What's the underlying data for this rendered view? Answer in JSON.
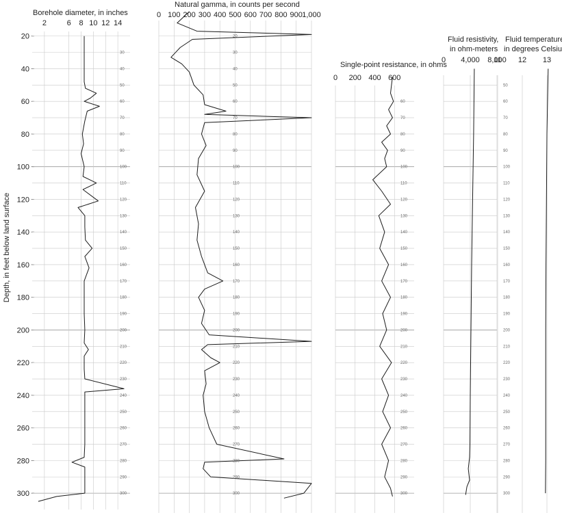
{
  "chart_data": {
    "type": "line",
    "orientation": "depth-vertical",
    "ylabel": "Depth, in feet below land surface",
    "ylim": [
      0,
      310
    ],
    "yticks": [
      20,
      40,
      60,
      80,
      100,
      120,
      140,
      160,
      180,
      200,
      220,
      240,
      260,
      280,
      300
    ],
    "tracks": [
      {
        "title": "Borehole diameter, in inches",
        "xlim": [
          0,
          16
        ],
        "xticks": [
          2,
          6,
          8,
          10,
          12,
          14
        ],
        "points": [
          [
            8.5,
            20
          ],
          [
            8.5,
            30
          ],
          [
            8.5,
            40
          ],
          [
            8.5,
            48
          ],
          [
            8.7,
            52
          ],
          [
            10.5,
            55
          ],
          [
            9.5,
            58
          ],
          [
            8.5,
            60
          ],
          [
            11,
            63
          ],
          [
            9,
            66
          ],
          [
            8.6,
            72
          ],
          [
            8.2,
            80
          ],
          [
            8.4,
            86
          ],
          [
            8,
            92
          ],
          [
            8.5,
            100
          ],
          [
            8.3,
            106
          ],
          [
            10.5,
            110
          ],
          [
            8.3,
            114
          ],
          [
            10.8,
            121
          ],
          [
            7.5,
            125
          ],
          [
            8.6,
            130
          ],
          [
            8.6,
            137
          ],
          [
            8.7,
            145
          ],
          [
            9.8,
            150
          ],
          [
            8.6,
            155
          ],
          [
            9.3,
            162
          ],
          [
            8.5,
            170
          ],
          [
            8.5,
            180
          ],
          [
            8.5,
            190
          ],
          [
            8.6,
            200
          ],
          [
            8.5,
            208
          ],
          [
            9.2,
            212
          ],
          [
            8.5,
            216
          ],
          [
            8.5,
            224
          ],
          [
            8.6,
            230
          ],
          [
            15,
            236
          ],
          [
            8.6,
            238
          ],
          [
            8.6,
            250
          ],
          [
            8.6,
            260
          ],
          [
            8.6,
            270
          ],
          [
            8.5,
            278
          ],
          [
            6.5,
            281
          ],
          [
            8.6,
            284
          ],
          [
            8.6,
            292
          ],
          [
            8.6,
            300
          ],
          [
            4,
            302
          ],
          [
            1,
            305
          ]
        ]
      },
      {
        "title": "Natural gamma, in counts per second",
        "xlim": [
          0,
          1000
        ],
        "xticks": [
          0,
          100,
          200,
          300,
          400,
          500,
          600,
          700,
          800,
          900,
          1000
        ],
        "xticklabels": [
          "0",
          "100",
          "200",
          "300",
          "400",
          "500",
          "600",
          "700",
          "800",
          "900",
          "1,000"
        ],
        "points": [
          [
            200,
            5
          ],
          [
            120,
            12
          ],
          [
            250,
            17
          ],
          [
            1000,
            19
          ],
          [
            220,
            22
          ],
          [
            140,
            27
          ],
          [
            80,
            33
          ],
          [
            150,
            37
          ],
          [
            200,
            42
          ],
          [
            230,
            50
          ],
          [
            290,
            56
          ],
          [
            300,
            62
          ],
          [
            440,
            66
          ],
          [
            300,
            68
          ],
          [
            1000,
            70
          ],
          [
            300,
            73
          ],
          [
            280,
            80
          ],
          [
            310,
            87
          ],
          [
            260,
            95
          ],
          [
            250,
            105
          ],
          [
            300,
            115
          ],
          [
            240,
            125
          ],
          [
            260,
            135
          ],
          [
            250,
            145
          ],
          [
            280,
            155
          ],
          [
            320,
            165
          ],
          [
            420,
            170
          ],
          [
            300,
            175
          ],
          [
            260,
            180
          ],
          [
            300,
            188
          ],
          [
            280,
            196
          ],
          [
            330,
            203
          ],
          [
            1000,
            207
          ],
          [
            320,
            209
          ],
          [
            280,
            212
          ],
          [
            340,
            217
          ],
          [
            400,
            220
          ],
          [
            300,
            225
          ],
          [
            310,
            233
          ],
          [
            290,
            240
          ],
          [
            300,
            250
          ],
          [
            330,
            260
          ],
          [
            380,
            270
          ],
          [
            820,
            279
          ],
          [
            300,
            281
          ],
          [
            290,
            285
          ],
          [
            340,
            290
          ],
          [
            1000,
            294
          ],
          [
            950,
            300
          ],
          [
            820,
            303
          ]
        ]
      },
      {
        "title": "Single-point resistance, in ohms",
        "xlim": [
          0,
          800
        ],
        "xticks": [
          0,
          200,
          400,
          600
        ],
        "points": [
          [
            580,
            45
          ],
          [
            570,
            50
          ],
          [
            560,
            55
          ],
          [
            590,
            60
          ],
          [
            540,
            65
          ],
          [
            580,
            70
          ],
          [
            520,
            75
          ],
          [
            560,
            80
          ],
          [
            470,
            85
          ],
          [
            530,
            90
          ],
          [
            500,
            95
          ],
          [
            520,
            100
          ],
          [
            380,
            108
          ],
          [
            470,
            115
          ],
          [
            560,
            123
          ],
          [
            440,
            130
          ],
          [
            500,
            140
          ],
          [
            450,
            150
          ],
          [
            540,
            160
          ],
          [
            470,
            170
          ],
          [
            560,
            180
          ],
          [
            480,
            190
          ],
          [
            520,
            200
          ],
          [
            450,
            210
          ],
          [
            570,
            220
          ],
          [
            470,
            230
          ],
          [
            540,
            240
          ],
          [
            480,
            250
          ],
          [
            560,
            260
          ],
          [
            470,
            270
          ],
          [
            540,
            280
          ],
          [
            500,
            290
          ],
          [
            560,
            297
          ],
          [
            580,
            302
          ]
        ]
      },
      {
        "title": "Fluid resistivity, in ohm-meters",
        "xlim": [
          0,
          8000
        ],
        "xticks": [
          0,
          4000,
          8000
        ],
        "xticklabels": [
          "0",
          "4,000",
          "8,000"
        ],
        "points": [
          [
            4600,
            40
          ],
          [
            4500,
            80
          ],
          [
            4350,
            120
          ],
          [
            4200,
            160
          ],
          [
            4100,
            200
          ],
          [
            4000,
            240
          ],
          [
            3950,
            270
          ],
          [
            3900,
            278
          ],
          [
            3700,
            285
          ],
          [
            3900,
            292
          ],
          [
            3500,
            296
          ],
          [
            3300,
            301
          ]
        ]
      },
      {
        "title": "Fluid temperature, in degrees Celsius",
        "xlim": [
          10,
          14
        ],
        "xticks": [
          11,
          12,
          13
        ],
        "points": [
          [
            13.05,
            40
          ],
          [
            13.0,
            80
          ],
          [
            12.98,
            120
          ],
          [
            12.96,
            160
          ],
          [
            12.95,
            200
          ],
          [
            12.95,
            240
          ],
          [
            12.95,
            280
          ],
          [
            12.94,
            300
          ]
        ]
      }
    ],
    "grid": true,
    "legend": "none"
  }
}
